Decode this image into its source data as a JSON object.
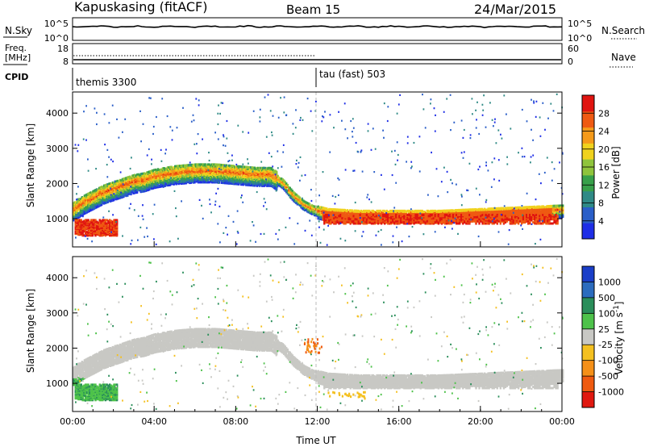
{
  "header": {
    "station": "Kapuskasing (fitACF)",
    "beam": "Beam 15",
    "date": "24/Mar/2015"
  },
  "strip_panels": {
    "nsky": {
      "label": "N.Sky",
      "ticks_left": [
        "10^5",
        "10^0"
      ],
      "ticks_right": [
        "10^5",
        "10^0"
      ],
      "right_label": "N.Search"
    },
    "freq": {
      "label": "Freq.",
      "unit": "[MHz]",
      "ticks_left": [
        "18",
        "8"
      ],
      "ticks_right": [
        "60",
        "0"
      ],
      "right_label": "Nave"
    },
    "cpid": {
      "label": "CPID",
      "segments": [
        {
          "name": "themis 3300",
          "start_hour": 0
        },
        {
          "name": "tau (fast) 503",
          "start_hour": 12
        }
      ]
    }
  },
  "chart_data": [
    {
      "type": "heatmap",
      "title": "Power",
      "ylabel": "Slant Range [km]",
      "yticks": [
        "1000",
        "2000",
        "3000",
        "4000"
      ],
      "ylim": [
        200,
        4600
      ],
      "xlim": [
        0,
        24
      ],
      "colorbar": {
        "label": "Power [dB]",
        "range": [
          0,
          32
        ],
        "tick_labels": [
          "4",
          "8",
          "12",
          "16",
          "20",
          "24",
          "28"
        ],
        "colors": [
          "#1e2ee6",
          "#2a5ec8",
          "#2f8a86",
          "#38a04a",
          "#8fc43c",
          "#f0d21e",
          "#f59a1a",
          "#ef5a12",
          "#e01410"
        ]
      },
      "echo_band": {
        "hours": [
          0.0,
          0.5,
          1.0,
          1.5,
          2.0,
          2.5,
          3.0,
          3.5,
          4.0,
          5.0,
          6.0,
          7.0,
          8.0,
          9.0,
          9.7,
          10.3,
          10.8,
          11.3,
          11.8,
          12.5,
          14.0,
          16.0,
          18.0,
          20.0,
          22.0,
          23.9
        ],
        "range_km": [
          1300,
          1500,
          1650,
          1800,
          1900,
          2000,
          2100,
          2150,
          2250,
          2350,
          2400,
          2400,
          2350,
          2300,
          2300,
          2050,
          1700,
          1450,
          1300,
          1200,
          1150,
          1150,
          1150,
          1200,
          1250,
          1300
        ]
      }
    },
    {
      "type": "heatmap",
      "title": "Velocity",
      "ylabel": "Slant Range [km]",
      "yticks": [
        "1000",
        "2000",
        "3000",
        "4000"
      ],
      "ylim": [
        200,
        4600
      ],
      "xlim": [
        0,
        24
      ],
      "xticks": [
        "00:00",
        "04:00",
        "08:00",
        "12:00",
        "16:00",
        "20:00",
        "00:00"
      ],
      "xlabel": "Time UT",
      "colorbar": {
        "label": "Velocity [m s^-1]",
        "tick_labels": [
          "1000",
          "500",
          "100",
          "25",
          "-25",
          "-100",
          "-500",
          "-1000"
        ],
        "colors": [
          "#1a3ec8",
          "#2c6cbe",
          "#2a8e5a",
          "#4ec24a",
          "#c8c8c4",
          "#f4c020",
          "#f59018",
          "#ef5a10",
          "#e01810"
        ]
      }
    }
  ]
}
